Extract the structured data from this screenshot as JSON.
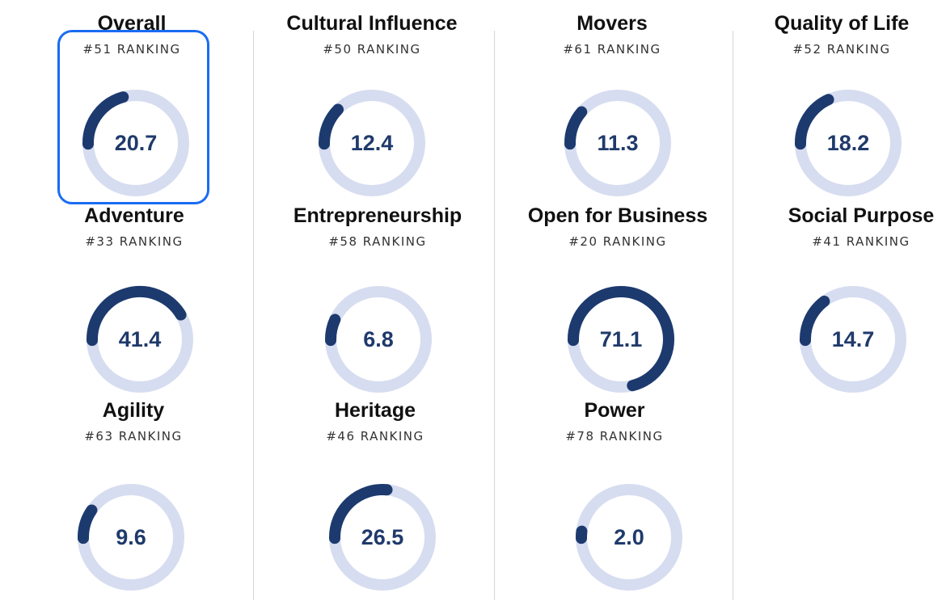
{
  "colors": {
    "track": "#d7ddf0",
    "progress": "#1d3a6e",
    "selected_border": "#1a6cf2",
    "score_text": "#1f3a6b"
  },
  "rank_suffix": "RANKING",
  "metrics": [
    {
      "key": "overall",
      "title": "Overall",
      "rank": "#51 RANKING",
      "score": "20.7",
      "value": 20.7,
      "selected": true
    },
    {
      "key": "cultural-influence",
      "title": "Cultural Influence",
      "rank": "#50 RANKING",
      "score": "12.4",
      "value": 12.4
    },
    {
      "key": "movers",
      "title": "Movers",
      "rank": "#61 RANKING",
      "score": "11.3",
      "value": 11.3
    },
    {
      "key": "quality-of-life",
      "title": "Quality of Life",
      "rank": "#52 RANKING",
      "score": "18.2",
      "value": 18.2
    },
    {
      "key": "adventure",
      "title": "Adventure",
      "rank": "#33 RANKING",
      "score": "41.4",
      "value": 41.4
    },
    {
      "key": "entrepreneurship",
      "title": "Entrepreneurship",
      "rank": "#58 RANKING",
      "score": "6.8",
      "value": 6.8
    },
    {
      "key": "open-for-business",
      "title": "Open for Business",
      "rank": "#20 RANKING",
      "score": "71.1",
      "value": 71.1
    },
    {
      "key": "social-purpose",
      "title": "Social Purpose",
      "rank": "#41 RANKING",
      "score": "14.7",
      "value": 14.7
    },
    {
      "key": "agility",
      "title": "Agility",
      "rank": "#63 RANKING",
      "score": "9.6",
      "value": 9.6
    },
    {
      "key": "heritage",
      "title": "Heritage",
      "rank": "#46 RANKING",
      "score": "26.5",
      "value": 26.5
    },
    {
      "key": "power",
      "title": "Power",
      "rank": "#78 RANKING",
      "score": "2.0",
      "value": 2.0
    }
  ]
}
